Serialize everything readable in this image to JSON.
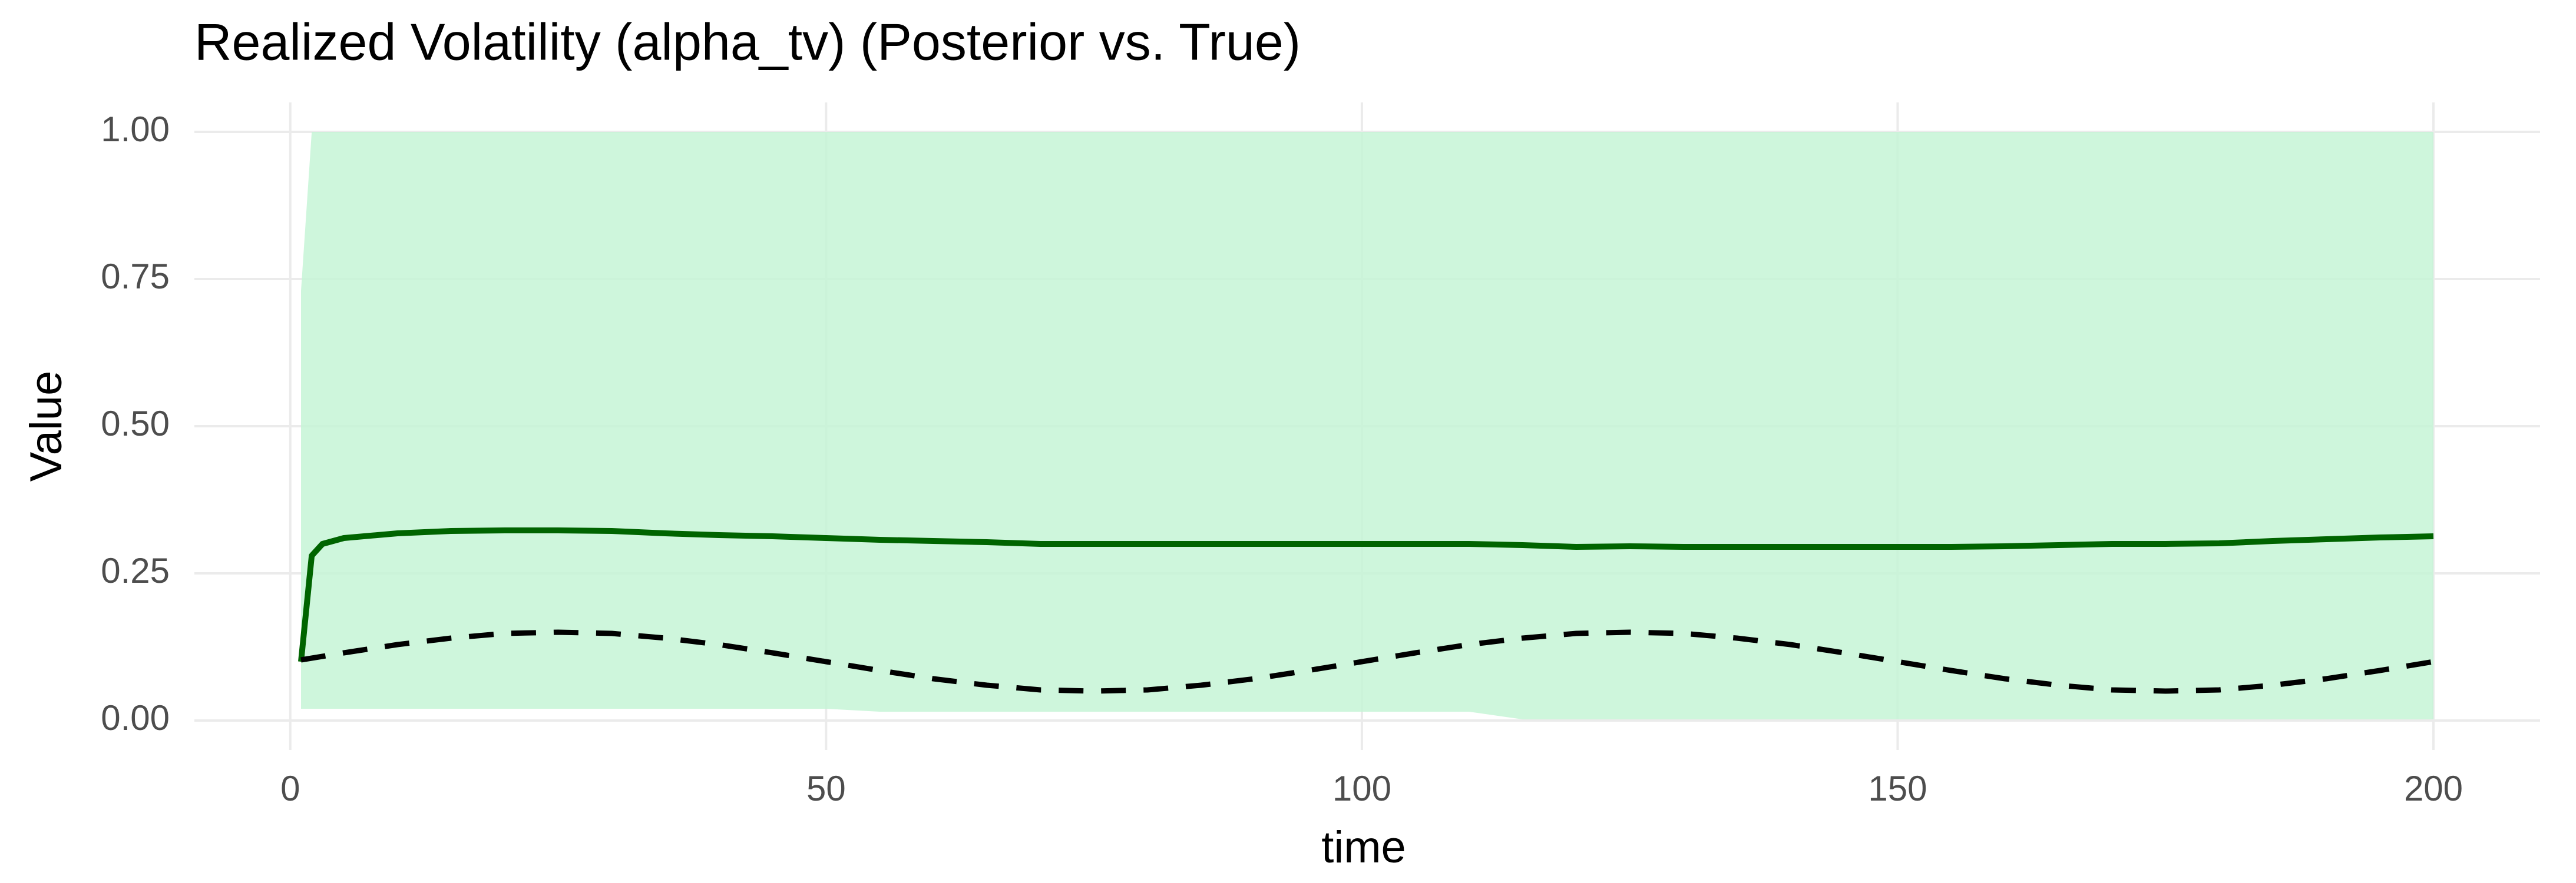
{
  "chart_data": {
    "type": "line",
    "title": "Realized Volatility (alpha_tv) (Posterior vs. True)",
    "x_label": "time",
    "y_label": "Value",
    "x": [
      1,
      2,
      3,
      5,
      10,
      15,
      20,
      25,
      30,
      35,
      40,
      45,
      50,
      55,
      60,
      65,
      70,
      75,
      80,
      85,
      90,
      95,
      100,
      105,
      110,
      115,
      120,
      125,
      130,
      135,
      140,
      145,
      150,
      155,
      160,
      165,
      170,
      175,
      180,
      185,
      190,
      195,
      200
    ],
    "band": {
      "color": "#c5f5d6",
      "lower": [
        0.02,
        0.02,
        0.02,
        0.02,
        0.02,
        0.02,
        0.02,
        0.02,
        0.02,
        0.02,
        0.02,
        0.02,
        0.02,
        0.015,
        0.015,
        0.015,
        0.015,
        0.015,
        0.015,
        0.015,
        0.015,
        0.015,
        0.015,
        0.015,
        0.015,
        0.002,
        0.002,
        0.002,
        0.002,
        0.002,
        0.002,
        0.002,
        0.002,
        0.002,
        0.002,
        0.002,
        0.002,
        0.002,
        0.002,
        0.002,
        0.002,
        0.002,
        0.002
      ],
      "upper": [
        0.73,
        1.0,
        1.0,
        1.0,
        1.0,
        1.0,
        1.0,
        1.0,
        1.0,
        1.0,
        1.0,
        1.0,
        1.0,
        1.0,
        1.0,
        1.0,
        1.0,
        1.0,
        1.0,
        1.0,
        1.0,
        1.0,
        1.0,
        1.0,
        1.0,
        1.0,
        1.0,
        1.0,
        1.0,
        1.0,
        1.0,
        1.0,
        1.0,
        1.0,
        1.0,
        1.0,
        1.0,
        1.0,
        1.0,
        1.0,
        1.0,
        1.0,
        1.0
      ]
    },
    "series": [
      {
        "color": "#006400",
        "dashed": false,
        "values": [
          0.1,
          0.28,
          0.3,
          0.31,
          0.318,
          0.322,
          0.323,
          0.323,
          0.322,
          0.318,
          0.315,
          0.313,
          0.31,
          0.307,
          0.305,
          0.303,
          0.3,
          0.3,
          0.3,
          0.3,
          0.3,
          0.3,
          0.3,
          0.3,
          0.3,
          0.298,
          0.295,
          0.296,
          0.295,
          0.295,
          0.295,
          0.295,
          0.295,
          0.295,
          0.296,
          0.298,
          0.3,
          0.3,
          0.301,
          0.305,
          0.308,
          0.311,
          0.313
        ]
      },
      {
        "color": "#000000",
        "dashed": true,
        "values": [
          0.103,
          0.106,
          0.109,
          0.115,
          0.129,
          0.14,
          0.148,
          0.15,
          0.148,
          0.14,
          0.129,
          0.115,
          0.1,
          0.085,
          0.071,
          0.06,
          0.052,
          0.05,
          0.052,
          0.06,
          0.071,
          0.085,
          0.1,
          0.115,
          0.129,
          0.14,
          0.148,
          0.15,
          0.148,
          0.14,
          0.129,
          0.115,
          0.1,
          0.085,
          0.071,
          0.06,
          0.052,
          0.05,
          0.052,
          0.06,
          0.071,
          0.085,
          0.1
        ]
      }
    ],
    "xlim": [
      -8.95,
      209.95
    ],
    "xticks": [
      0,
      50,
      100,
      150,
      200
    ],
    "ylim": [
      -0.05,
      1.05
    ],
    "yticks": [
      {
        "value": 0,
        "label": "0.00"
      },
      {
        "value": 0.25,
        "label": "0.25"
      },
      {
        "value": 0.5,
        "label": "0.50"
      },
      {
        "value": 0.75,
        "label": "0.75"
      },
      {
        "value": 1,
        "label": "1.00"
      }
    ],
    "grid": true
  }
}
